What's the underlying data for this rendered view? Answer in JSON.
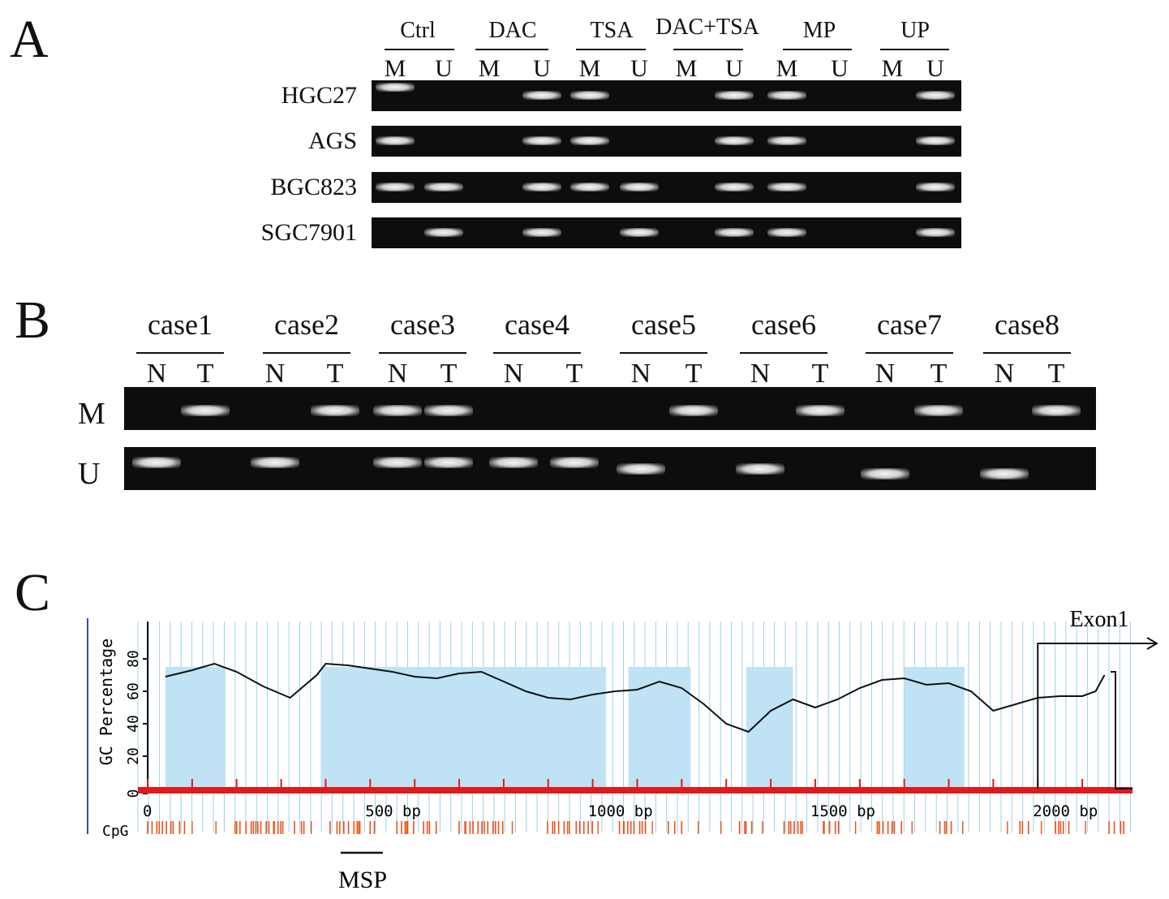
{
  "panels": {
    "a": {
      "letter": "A",
      "groups": [
        "Ctrl",
        "DAC",
        "TSA",
        "DAC+TSA",
        "MP",
        "UP"
      ],
      "lanes": [
        "M",
        "U",
        "M",
        "U",
        "M",
        "U",
        "M",
        "U",
        "M",
        "U",
        "M",
        "U"
      ],
      "rows": [
        {
          "label": "HGC27",
          "bands": [
            1,
            0,
            0,
            1,
            1,
            0,
            0,
            1,
            1,
            0,
            0,
            1
          ]
        },
        {
          "label": "AGS",
          "bands": [
            1,
            0,
            0,
            1,
            1,
            0,
            0,
            1,
            1,
            0,
            0,
            1
          ]
        },
        {
          "label": "BGC823",
          "bands": [
            1,
            1,
            0,
            1,
            1,
            1,
            0,
            1,
            1,
            0,
            0,
            1
          ]
        },
        {
          "label": "SGC7901",
          "bands": [
            0,
            1,
            0,
            1,
            0,
            1,
            0,
            1,
            1,
            0,
            0,
            1
          ]
        }
      ]
    },
    "b": {
      "letter": "B",
      "cases": [
        "case1",
        "case2",
        "case3",
        "case4",
        "case5",
        "case6",
        "case7",
        "case8"
      ],
      "lanes": [
        "N",
        "T"
      ],
      "rows": [
        {
          "label": "M",
          "bands": [
            0,
            1,
            0,
            1,
            1,
            1,
            0,
            0,
            0,
            1,
            0,
            1,
            0,
            1,
            0,
            1
          ]
        },
        {
          "label": "U",
          "bands": [
            1,
            0,
            1,
            0,
            1,
            1,
            1,
            1,
            1,
            0,
            1,
            0,
            1,
            0,
            1,
            0
          ]
        }
      ]
    },
    "c": {
      "letter": "C",
      "ylabel": "GC Percentage",
      "yticks": [
        "0",
        "20",
        "40",
        "60",
        "80"
      ],
      "xticks": [
        "0",
        "500 bp",
        "1000 bp",
        "1500 bp",
        "2000 bp"
      ],
      "cpg_label": "CpG",
      "exon_label": "Exon1",
      "msp_label": "MSP",
      "colors": {
        "island": "#bfe3f4",
        "axis_red": "#e01b1b",
        "cpg": "#e8541a",
        "grid": "#9fd0ea",
        "curve": "#111111"
      }
    }
  },
  "chart_data": {
    "type": "line",
    "title": "",
    "xlabel": "",
    "ylabel": "GC Percentage",
    "xlim": [
      0,
      2180
    ],
    "ylim": [
      0,
      90
    ],
    "series": [
      {
        "x": [
          40,
          100,
          150,
          200,
          260,
          320,
          380,
          400,
          450,
          500,
          550,
          600,
          650,
          700,
          750,
          800,
          850,
          900,
          950,
          1000,
          1050,
          1100,
          1150,
          1200,
          1250,
          1300,
          1350,
          1400,
          1450,
          1500,
          1550,
          1600,
          1650,
          1700,
          1750,
          1800,
          1850,
          1900,
          1950,
          2000,
          2050,
          2100,
          2130,
          2150
        ],
        "y": [
          69,
          73,
          77,
          72,
          63,
          56,
          70,
          77,
          76,
          74,
          72,
          69,
          68,
          71,
          72,
          66,
          60,
          56,
          55,
          58,
          60,
          61,
          66,
          62,
          52,
          40,
          35,
          48,
          55,
          50,
          55,
          62,
          67,
          68,
          64,
          65,
          60,
          48,
          52,
          56,
          57,
          57,
          60,
          70
        ]
      }
    ],
    "islands": [
      [
        40,
        175
      ],
      [
        390,
        1030
      ],
      [
        1080,
        1220
      ],
      [
        1345,
        1450
      ],
      [
        1700,
        1835
      ]
    ],
    "exon_start": 2000,
    "msp_region": [
      440,
      520
    ]
  }
}
